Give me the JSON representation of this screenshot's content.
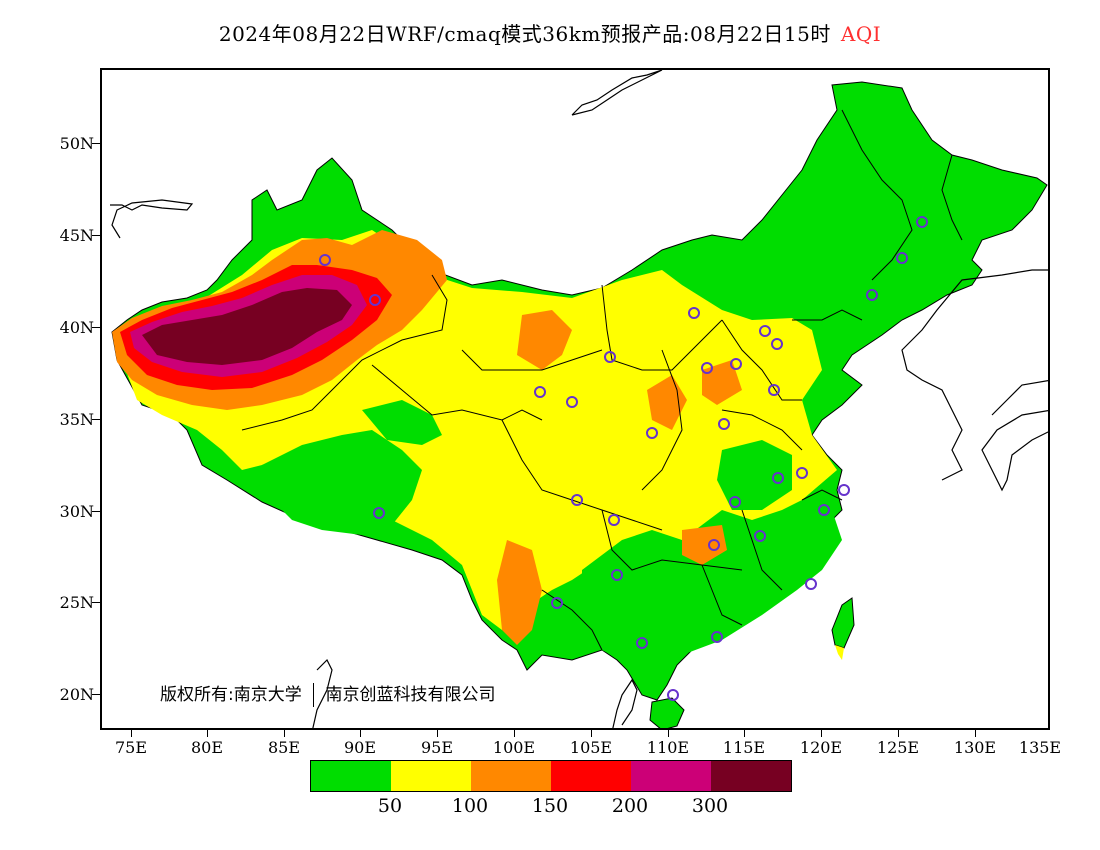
{
  "title": {
    "main": "2024年08月22日WRF/cmaq模式36km预报产品:08月22日15时",
    "variable": "AQI"
  },
  "y_labels": [
    "50N",
    "45N",
    "40N",
    "35N",
    "30N",
    "25N",
    "20N"
  ],
  "x_labels": [
    "75E",
    "80E",
    "85E",
    "90E",
    "95E",
    "100E",
    "105E",
    "110E",
    "115E",
    "120E",
    "125E",
    "130E",
    "135E"
  ],
  "copyright": {
    "left": "版权所有:南京大学",
    "right": "南京创蓝科技有限公司"
  },
  "legend": {
    "colors": [
      "#00dd00",
      "#ffff00",
      "#ff8800",
      "#ff0000",
      "#cc0077",
      "#770022"
    ],
    "labels": [
      "50",
      "100",
      "150",
      "200",
      "300"
    ]
  },
  "colors": {
    "good": "#00dd00",
    "moderate": "#ffff00",
    "unhealthy_sensitive": "#ff8800",
    "unhealthy": "#ff0000",
    "very_unhealthy": "#cc0077",
    "hazardous": "#770022",
    "station_marker": "#6633cc",
    "title_accent": "#ff3030"
  },
  "stations_count_note": ""
}
